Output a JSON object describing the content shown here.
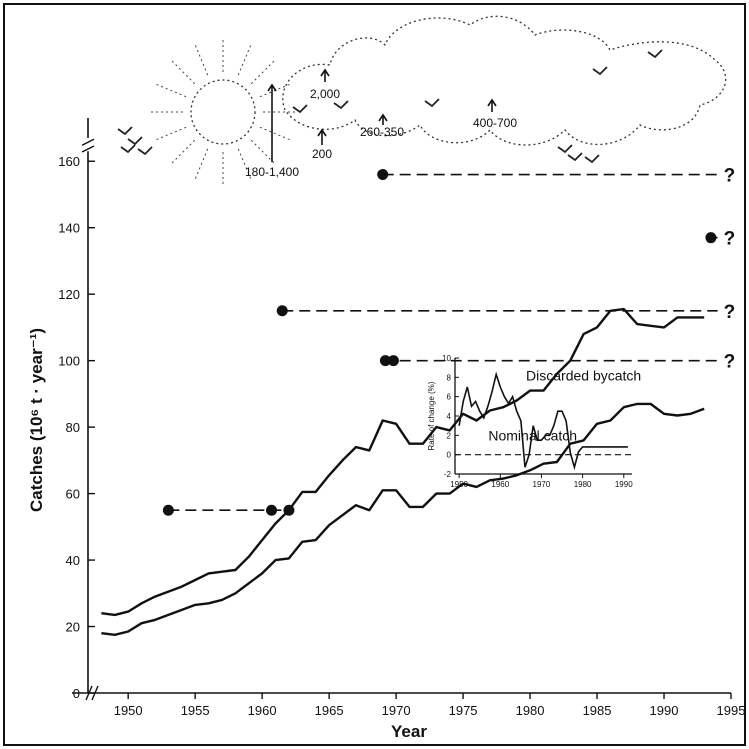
{
  "chart_data": {
    "type": "line",
    "xlabel": "Year",
    "ylabel": "Catches (10⁶ t · year⁻¹)",
    "xlim": [
      1947,
      1995
    ],
    "ylim": [
      0,
      170
    ],
    "xticks": [
      "1950",
      "1955",
      "1960",
      "1965",
      "1970",
      "1975",
      "1980",
      "1985",
      "1990",
      "1995"
    ],
    "yticks": [
      "0",
      "20",
      "40",
      "60",
      "80",
      "100",
      "120",
      "140",
      "160"
    ],
    "series": [
      {
        "name": "Discarded bycatch",
        "x": [
          1948,
          1949,
          1950,
          1951,
          1952,
          1953,
          1954,
          1955,
          1956,
          1957,
          1958,
          1959,
          1960,
          1961,
          1962,
          1963,
          1964,
          1965,
          1966,
          1967,
          1968,
          1969,
          1970,
          1971,
          1972,
          1973,
          1974,
          1975,
          1976,
          1977,
          1978,
          1979,
          1980,
          1981,
          1982,
          1983,
          1984,
          1985,
          1986,
          1987,
          1988,
          1989,
          1990,
          1991,
          1992,
          1993
        ],
        "values": [
          24,
          23.5,
          24.5,
          27,
          29,
          30.5,
          32,
          34,
          36,
          36.5,
          37,
          41,
          46,
          51,
          55,
          60.5,
          60.5,
          65.5,
          70,
          74,
          73,
          82,
          81,
          75,
          75,
          80,
          79,
          84,
          82,
          85,
          86,
          88,
          91,
          91,
          96,
          100,
          108,
          110,
          115,
          115.5,
          111,
          110.5,
          110,
          113,
          113,
          113
        ]
      },
      {
        "name": "Nominal catch",
        "x": [
          1948,
          1949,
          1950,
          1951,
          1952,
          1953,
          1954,
          1955,
          1956,
          1957,
          1958,
          1959,
          1960,
          1961,
          1962,
          1963,
          1964,
          1965,
          1966,
          1967,
          1968,
          1969,
          1970,
          1971,
          1972,
          1973,
          1974,
          1975,
          1976,
          1977,
          1978,
          1979,
          1980,
          1981,
          1982,
          1983,
          1984,
          1985,
          1986,
          1987,
          1988,
          1989,
          1990,
          1991,
          1992,
          1993
        ],
        "values": [
          18,
          17.5,
          18.5,
          21,
          22,
          23.5,
          25,
          26.5,
          27,
          28,
          30,
          33,
          36,
          40,
          40.5,
          45.5,
          46,
          50.5,
          53.5,
          56.5,
          55,
          61,
          61,
          56,
          56,
          60,
          60,
          63,
          62,
          64,
          64.5,
          65.5,
          67,
          69,
          69.5,
          75,
          76,
          81,
          82,
          86,
          87,
          87,
          84,
          83.5,
          84,
          85.5
        ]
      }
    ],
    "estimates": [
      {
        "x": [
          1953,
          1962
        ],
        "y": 55,
        "points": [
          1953,
          1960.7,
          1962
        ],
        "end": null
      },
      {
        "x": [
          1969,
          1994
        ],
        "y": 100,
        "points": [
          1969.2,
          1969.8
        ],
        "end": "?"
      },
      {
        "x": [
          1961.5,
          1994
        ],
        "y": 115,
        "points": [
          1961.5
        ],
        "end": "?"
      },
      {
        "x": [
          1993.5,
          1994
        ],
        "y": 137,
        "points": [
          1993.5
        ],
        "end": "?"
      },
      {
        "x": [
          1969,
          1994
        ],
        "y": 156,
        "points": [
          1969
        ],
        "end": "?"
      }
    ],
    "sky_labels": [
      "180-1,400",
      "200",
      "2,000",
      "260-350",
      "400-700"
    ],
    "inset": {
      "type": "line",
      "ylabel": "Rate of change (%)",
      "xticks": [
        "1950",
        "1960",
        "1970",
        "1980",
        "1990"
      ],
      "yticks": [
        "-2",
        "0",
        "2",
        "4",
        "6",
        "8",
        "10"
      ],
      "xlim": [
        1949,
        1992
      ],
      "ylim": [
        -2,
        10
      ],
      "x": [
        1950,
        1951,
        1952,
        1953,
        1954,
        1955,
        1956,
        1957,
        1958,
        1959,
        1960,
        1961,
        1962,
        1963,
        1964,
        1965,
        1966,
        1967,
        1968,
        1969,
        1970,
        1971,
        1972,
        1973,
        1974,
        1975,
        1976,
        1977,
        1978,
        1979,
        1980,
        1981,
        1982,
        1983,
        1984,
        1985,
        1986,
        1987,
        1988,
        1989,
        1990,
        1991
      ],
      "values": [
        3,
        5.5,
        7,
        5,
        5.5,
        4.5,
        3.8,
        5,
        6.5,
        8.3,
        7,
        6,
        5.3,
        6,
        4.5,
        3.5,
        -1.3,
        0,
        3,
        1.5,
        1.5,
        2,
        2,
        3,
        4.5,
        4.5,
        3.5,
        0.2,
        -1.3,
        0.3,
        0.8,
        0.8,
        0.8,
        0.8,
        0.8,
        0.8,
        0.8,
        0.8,
        0.8,
        0.8,
        0.8,
        0.8
      ],
      "baseline": 0
    }
  }
}
